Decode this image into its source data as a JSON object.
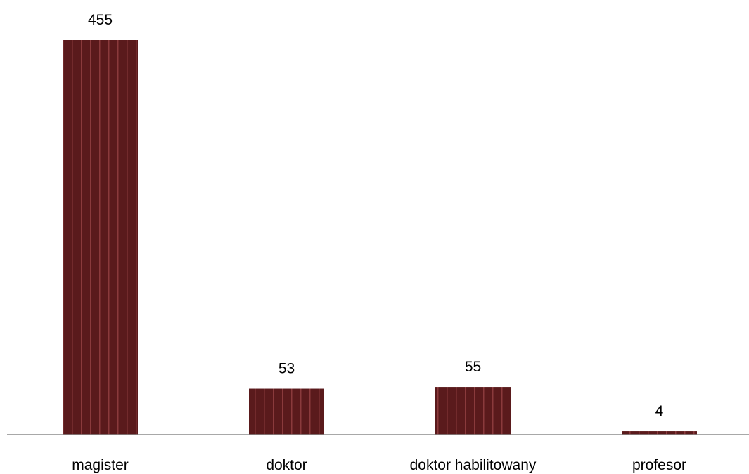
{
  "chart_data": {
    "type": "bar",
    "title": "",
    "xlabel": "",
    "ylabel": "",
    "categories": [
      "magister",
      "doktor",
      "doktor habilitowany",
      "profesor"
    ],
    "values": [
      455,
      53,
      55,
      4
    ],
    "data_labels": [
      "455",
      "53",
      "55",
      "4"
    ],
    "ylim": [
      0,
      455
    ],
    "grid": false,
    "legend": "none",
    "bar_color": "#5a1a1c",
    "bar_stripe_color": "#8a3a3c",
    "axis_color": "#8c8c8c"
  }
}
